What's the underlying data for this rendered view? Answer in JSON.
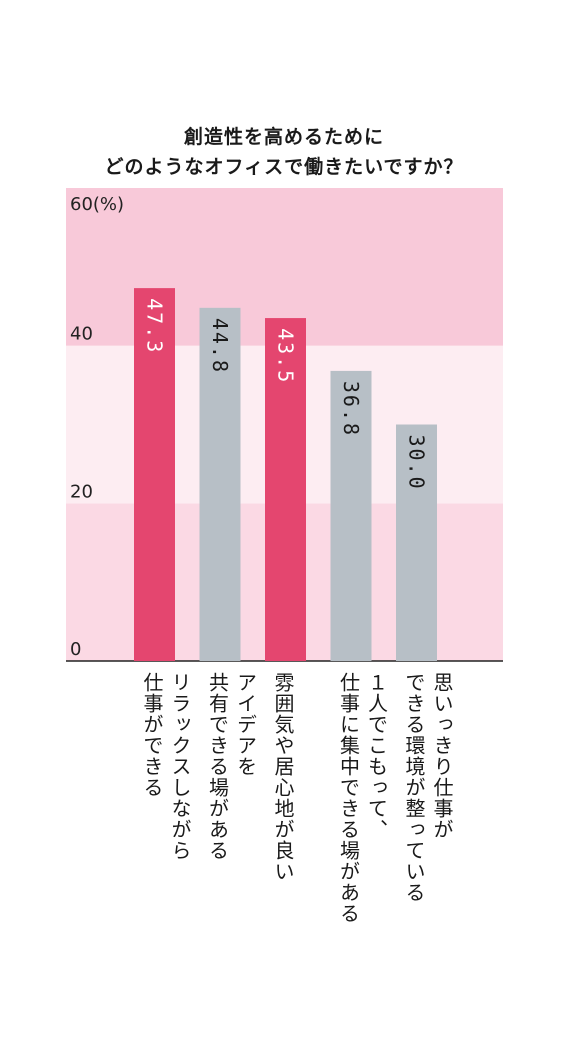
{
  "title_lines": [
    "創造性を高めるために",
    "どのようなオフィスで働きたいですか？"
  ],
  "chart_data": {
    "type": "bar",
    "y_unit": "(%)",
    "ylim": [
      0,
      60
    ],
    "yticks": [
      0,
      20,
      40,
      60
    ],
    "categories": [
      "リラックスしながら\n仕事ができる",
      "アイデアを\n共有できる場がある",
      "雰囲気や居心地が良い",
      "１人でこもって、\n仕事に集中できる場がある",
      "思いっきり仕事が\nできる環境が整っている"
    ],
    "values": [
      47.3,
      44.8,
      43.5,
      36.8,
      30.0
    ],
    "value_labels": [
      "47.3",
      "44.8",
      "43.5",
      "36.8",
      "30.0"
    ],
    "colors": [
      "#e4466f",
      "#b7bfc6",
      "#e4466f",
      "#b7bfc6",
      "#b7bfc6"
    ],
    "label_colors": [
      "#ffffff",
      "#1a1a1a",
      "#ffffff",
      "#1a1a1a",
      "#1a1a1a"
    ],
    "band_colors": [
      "#fbd9e4",
      "#fdedf2",
      "#f8c9d9"
    ],
    "grid": false,
    "legend": "none"
  }
}
